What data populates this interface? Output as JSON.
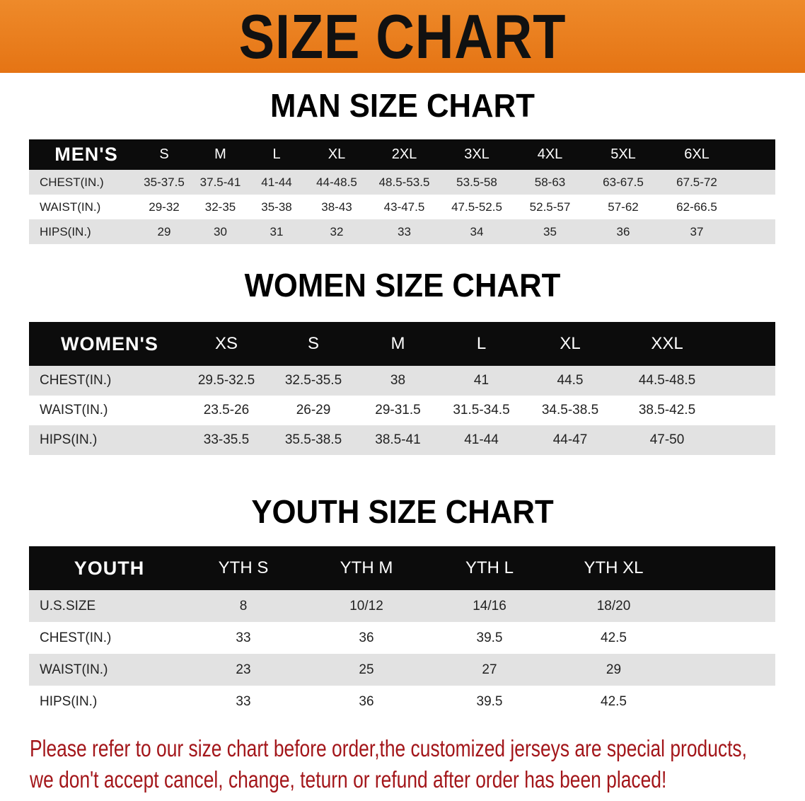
{
  "banner": {
    "title": "SIZE CHART",
    "background": "#e97b1c"
  },
  "men": {
    "title": "MAN SIZE CHART",
    "header": [
      "MEN'S",
      "S",
      "M",
      "L",
      "XL",
      "2XL",
      "3XL",
      "4XL",
      "5XL",
      "6XL"
    ],
    "rows": [
      [
        "CHEST(IN.)",
        "35-37.5",
        "37.5-41",
        "41-44",
        "44-48.5",
        "48.5-53.5",
        "53.5-58",
        "58-63",
        "63-67.5",
        "67.5-72"
      ],
      [
        "WAIST(IN.)",
        "29-32",
        "32-35",
        "35-38",
        "38-43",
        "43-47.5",
        "47.5-52.5",
        "52.5-57",
        "57-62",
        "62-66.5"
      ],
      [
        "HIPS(IN.)",
        "29",
        "30",
        "31",
        "32",
        "33",
        "34",
        "35",
        "36",
        "37"
      ]
    ]
  },
  "women": {
    "title": "WOMEN SIZE CHART",
    "header": [
      "WOMEN'S",
      "XS",
      "S",
      "M",
      "L",
      "XL",
      "XXL"
    ],
    "rows": [
      [
        "CHEST(IN.)",
        "29.5-32.5",
        "32.5-35.5",
        "38",
        "41",
        "44.5",
        "44.5-48.5"
      ],
      [
        "WAIST(IN.)",
        "23.5-26",
        "26-29",
        "29-31.5",
        "31.5-34.5",
        "34.5-38.5",
        "38.5-42.5"
      ],
      [
        "HIPS(IN.)",
        "33-35.5",
        "35.5-38.5",
        "38.5-41",
        "41-44",
        "44-47",
        "47-50"
      ]
    ]
  },
  "youth": {
    "title": "YOUTH SIZE CHART",
    "header": [
      "YOUTH",
      "YTH S",
      "YTH M",
      "YTH L",
      "YTH XL"
    ],
    "rows": [
      [
        "U.S.SIZE",
        "8",
        "10/12",
        "14/16",
        "18/20"
      ],
      [
        "CHEST(IN.)",
        "33",
        "36",
        "39.5",
        "42.5"
      ],
      [
        "WAIST(IN.)",
        "23",
        "25",
        "27",
        "29"
      ],
      [
        "HIPS(IN.)",
        "33",
        "36",
        "39.5",
        "42.5"
      ]
    ]
  },
  "footer": {
    "line1": "Please refer to our size chart before order,the customized jerseys are special products,",
    "line2": "we don't accept cancel, change, teturn or refund after order has been placed!",
    "color": "#a3161a"
  }
}
